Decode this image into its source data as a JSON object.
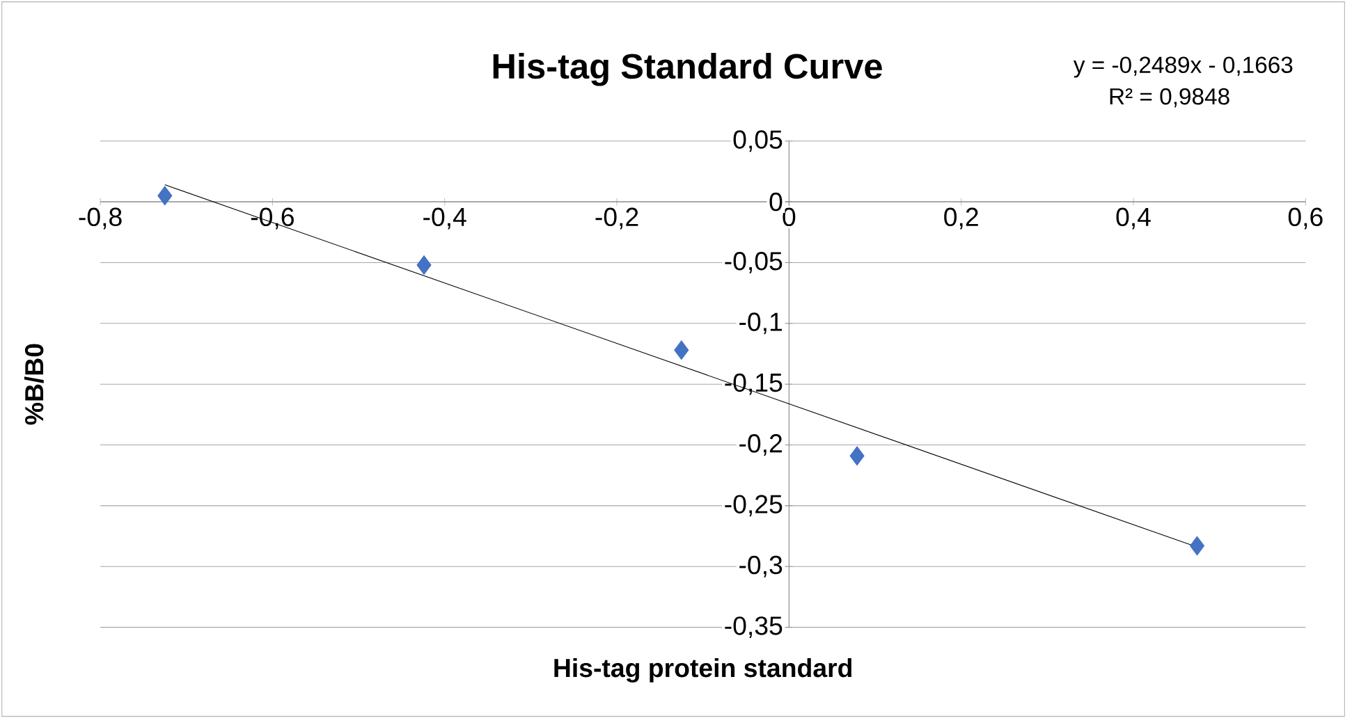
{
  "chart_data": {
    "type": "scatter",
    "title": "His-tag Standard Curve",
    "xlabel": "His-tag protein standard",
    "ylabel": "%B/B0",
    "annotations": [
      "y = -0,2489x - 0,1663",
      "R² = 0,9848"
    ],
    "series": [
      {
        "color": "#4472c4",
        "marker": "diamond",
        "x": [
          -0.725,
          -0.424,
          -0.125,
          0.079,
          0.474
        ],
        "values": [
          0.005,
          -0.052,
          -0.122,
          -0.209,
          -0.283
        ]
      },
      {
        "type": "line",
        "color": "#000000",
        "marker": "none",
        "x": [
          -0.725,
          0.474
        ],
        "values": [
          0.014,
          -0.284
        ]
      }
    ],
    "xlim": [
      -0.8,
      0.6
    ],
    "ylim": [
      -0.35,
      0.05
    ],
    "xticks": [
      {
        "value": -0.8,
        "label": "-0,8"
      },
      {
        "value": -0.6,
        "label": "-0,6"
      },
      {
        "value": -0.4,
        "label": "-0,4"
      },
      {
        "value": -0.2,
        "label": "-0,2"
      },
      0,
      {
        "value": 0.2,
        "label": "0,2"
      },
      {
        "value": 0.4,
        "label": "0,4"
      },
      {
        "value": 0.6,
        "label": "0,6"
      }
    ],
    "yticks": [
      {
        "value": 0.05,
        "label": "0,05"
      },
      0,
      {
        "value": -0.05,
        "label": "-0,05"
      },
      {
        "value": -0.1,
        "label": "-0,1"
      },
      {
        "value": -0.15,
        "label": "-0,15"
      },
      {
        "value": -0.2,
        "label": "-0,2"
      },
      {
        "value": -0.25,
        "label": "-0,25"
      },
      {
        "value": -0.3,
        "label": "-0,3"
      },
      {
        "value": -0.35,
        "label": "-0,35"
      }
    ],
    "grid": "y"
  }
}
